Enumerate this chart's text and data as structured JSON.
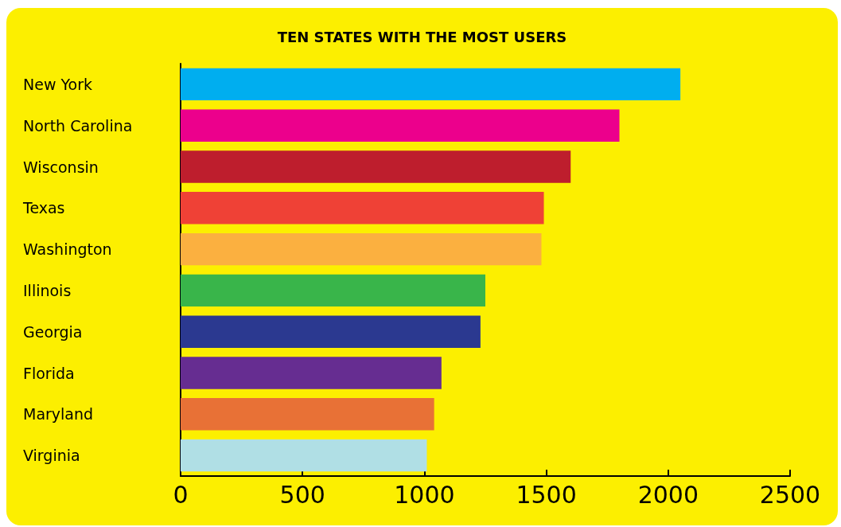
{
  "chart_data": {
    "type": "bar",
    "orientation": "horizontal",
    "title": "TEN STATES WITH THE MOST USERS",
    "categories": [
      "New York",
      "North Carolina",
      "Wisconsin",
      "Texas",
      "Washington",
      "Illinois",
      "Georgia",
      "Florida",
      "Maryland",
      "Virginia"
    ],
    "values": [
      2050,
      1800,
      1600,
      1490,
      1480,
      1250,
      1230,
      1070,
      1040,
      1010
    ],
    "colors": [
      "#00aeef",
      "#ec008c",
      "#be1e2d",
      "#ef4136",
      "#fbb040",
      "#39b54a",
      "#2b3990",
      "#662d91",
      "#e87136",
      "#b0dfe5"
    ],
    "xlim": [
      0,
      2500
    ],
    "xticks": [
      0,
      500,
      1000,
      1500,
      2000,
      2500
    ],
    "grid": false
  }
}
